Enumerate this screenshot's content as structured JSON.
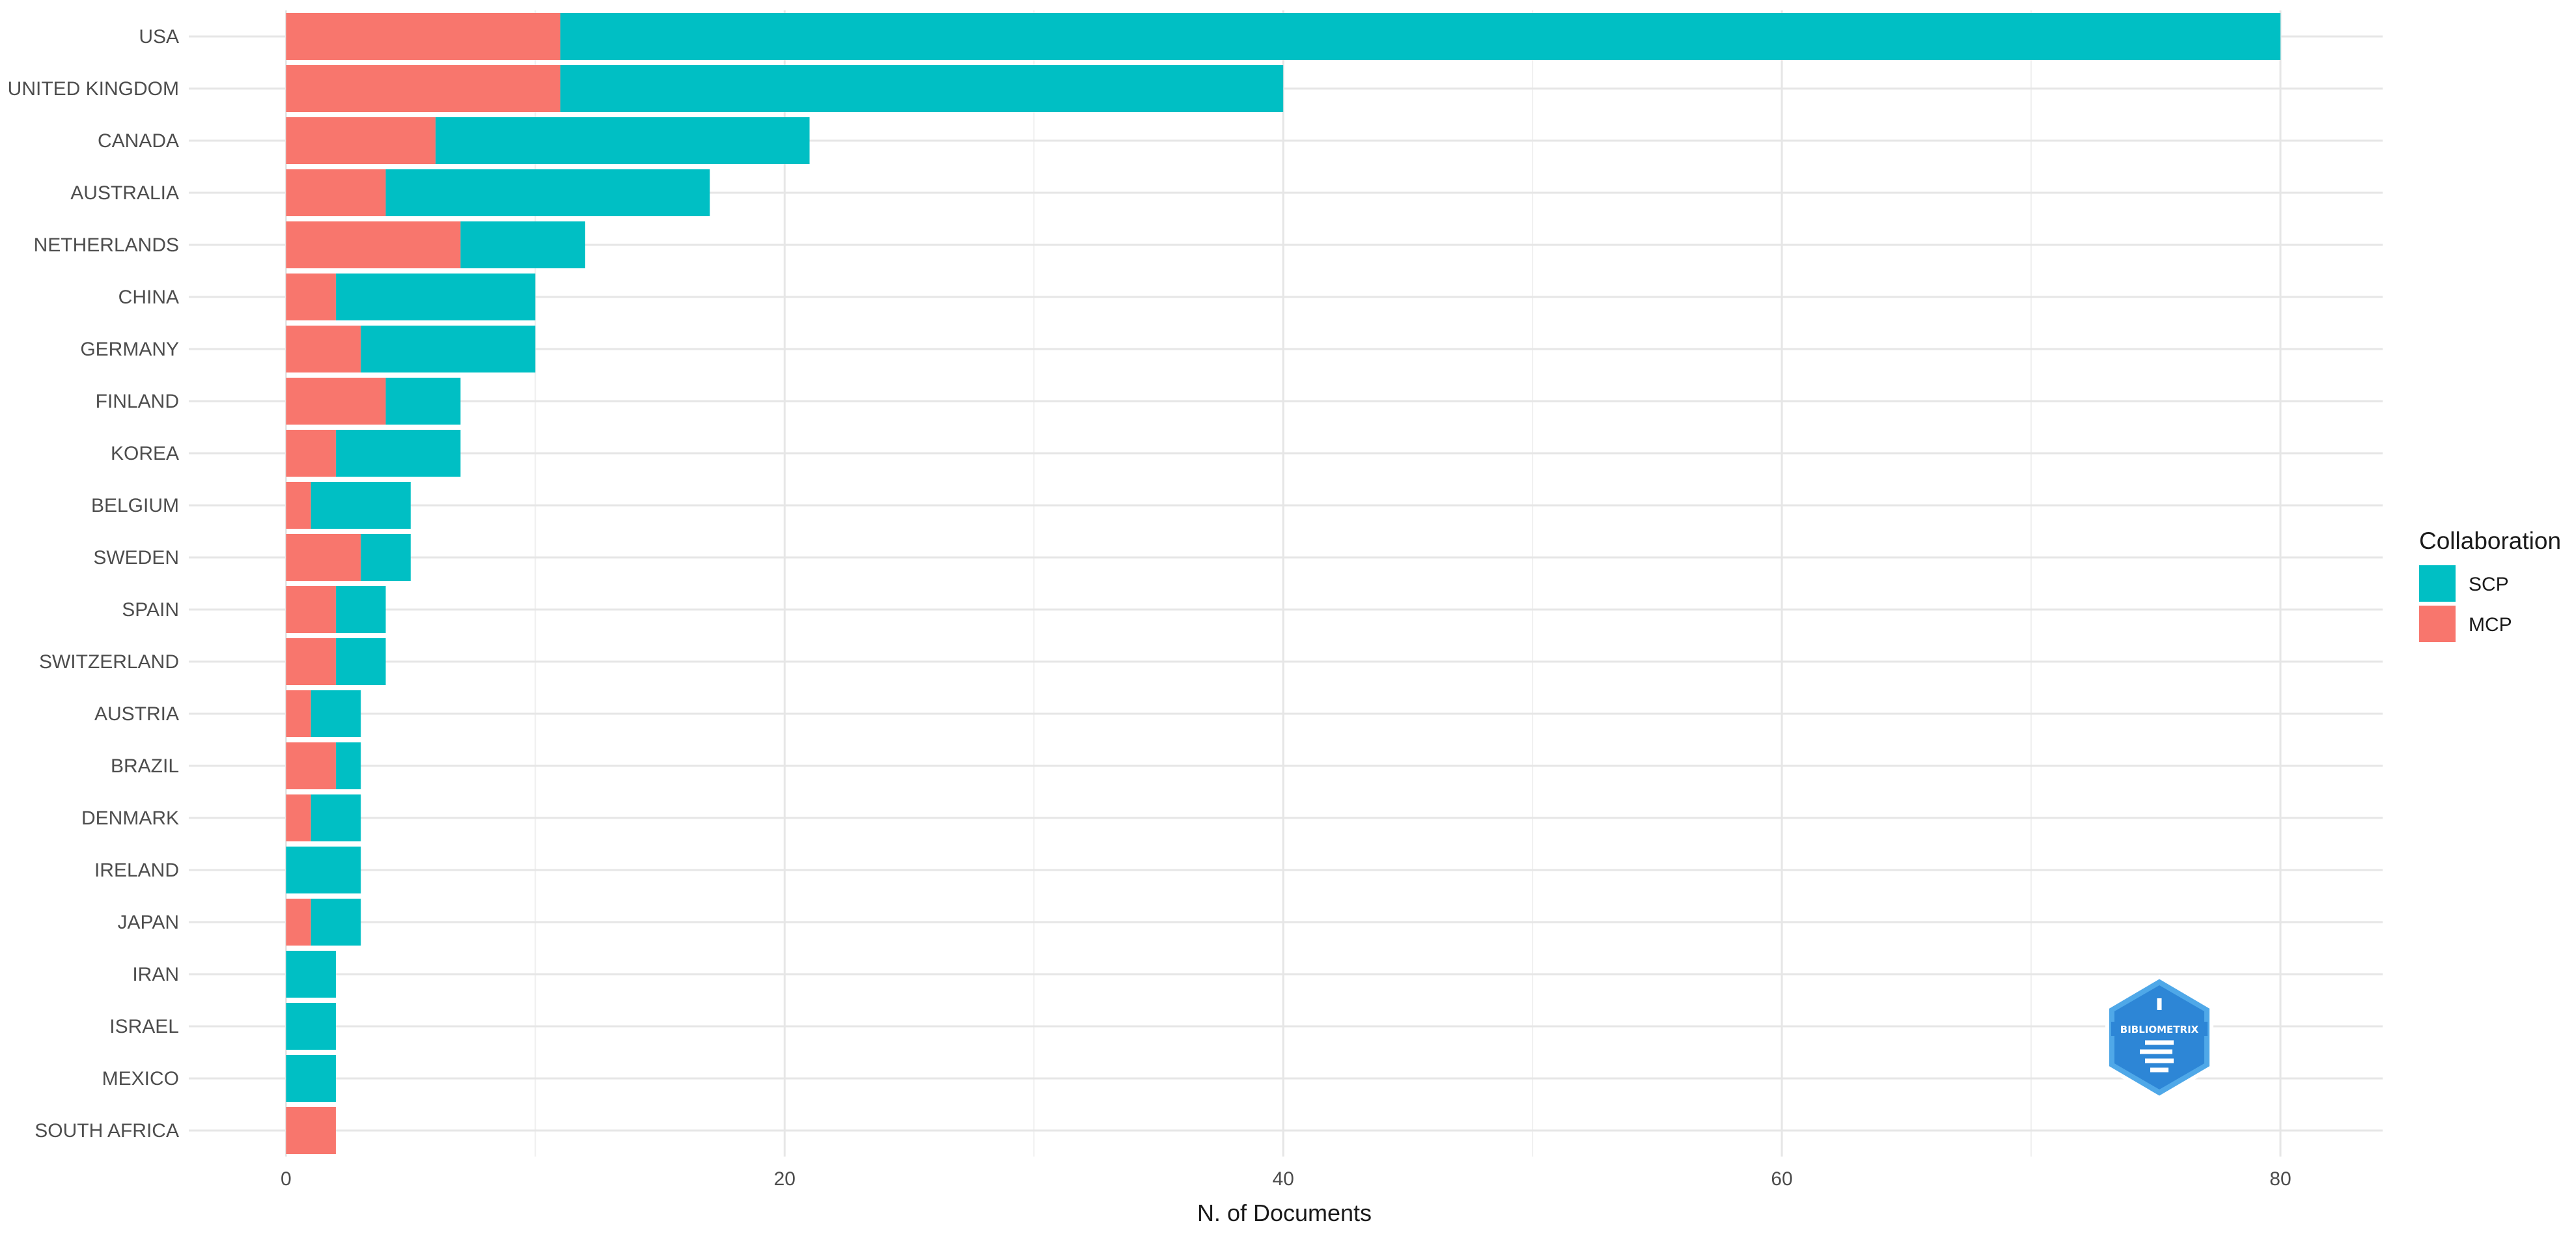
{
  "chart_data": {
    "type": "bar",
    "orientation": "horizontal",
    "stacked": true,
    "categories": [
      "USA",
      "UNITED KINGDOM",
      "CANADA",
      "AUSTRALIA",
      "NETHERLANDS",
      "CHINA",
      "GERMANY",
      "FINLAND",
      "KOREA",
      "BELGIUM",
      "SWEDEN",
      "SPAIN",
      "SWITZERLAND",
      "AUSTRIA",
      "BRAZIL",
      "DENMARK",
      "IRELAND",
      "JAPAN",
      "IRAN",
      "ISRAEL",
      "MEXICO",
      "SOUTH AFRICA"
    ],
    "series": [
      {
        "name": "MCP",
        "color": "#F8766D",
        "values": [
          11,
          11,
          6,
          4,
          7,
          2,
          3,
          4,
          2,
          1,
          3,
          2,
          2,
          1,
          2,
          1,
          0,
          1,
          0,
          0,
          0,
          2
        ]
      },
      {
        "name": "SCP",
        "color": "#00BFC4",
        "values": [
          69,
          29,
          15,
          13,
          5,
          8,
          7,
          3,
          5,
          4,
          2,
          2,
          2,
          2,
          1,
          2,
          3,
          2,
          2,
          2,
          2,
          0
        ]
      }
    ],
    "xlabel": "N. of Documents",
    "ylabel": "",
    "xlim": [
      -3.9,
      84.1
    ],
    "xticks": [
      0,
      20,
      40,
      60,
      80
    ],
    "grid": true,
    "legend": {
      "title": "Collaboration",
      "position": "right",
      "entries": [
        {
          "label": "SCP",
          "color": "#00BFC4"
        },
        {
          "label": "MCP",
          "color": "#F8766D"
        }
      ]
    },
    "watermark": "BIBLIOMETRIX"
  }
}
